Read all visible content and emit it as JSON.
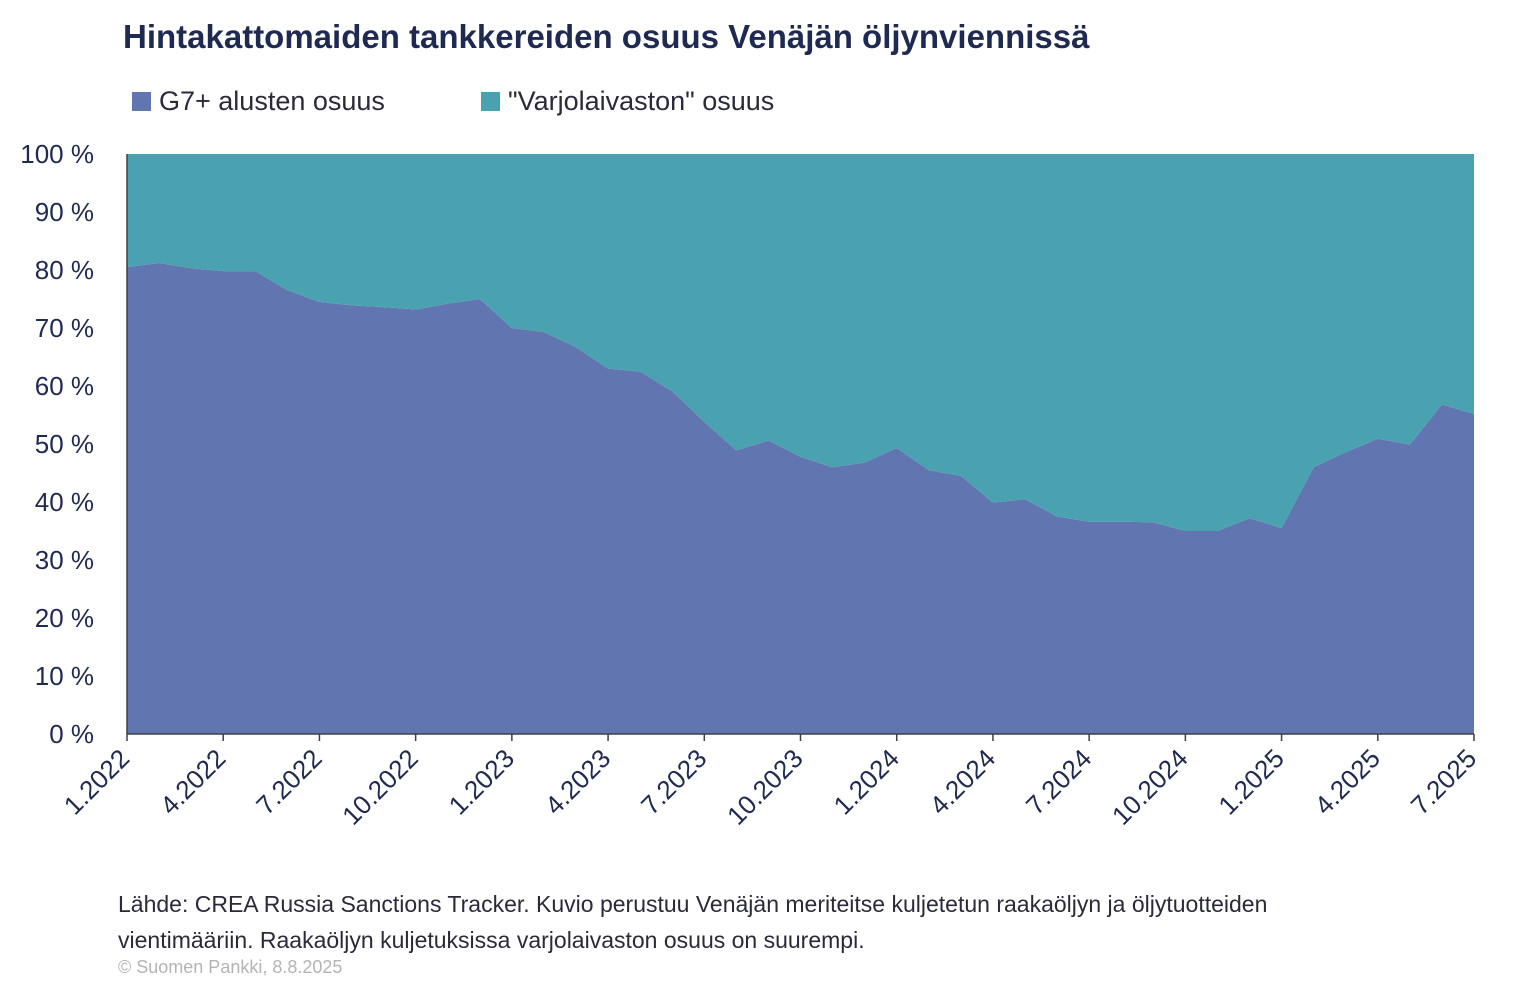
{
  "title": "Hintakattomaiden tankkereiden osuus Venäjän öljynviennissä",
  "legend": [
    {
      "label": "G7+ alusten osuus",
      "color": "#6175b0"
    },
    {
      "label": "\"Varjolaivaston\" osuus",
      "color": "#4aa1b0"
    }
  ],
  "source_lines": [
    "Lähde: CREA Russia Sanctions Tracker. Kuvio perustuu Venäjän meriteitse kuljetetun raakaöljyn ja öljytuotteiden",
    "vientimääriin. Raakaöljyn kuljetuksissa varjolaivaston osuus on suurempi."
  ],
  "copyright": "© Suomen Pankki, 8.8.2025",
  "chart_data": {
    "type": "area",
    "stacked": true,
    "percent": true,
    "title": "Hintakattomaiden tankkereiden osuus Venäjän öljynviennissä",
    "xlabel": "",
    "ylabel": "",
    "ylim": [
      0,
      100
    ],
    "yticks": [
      "0 %",
      "10 %",
      "20 %",
      "30 %",
      "40 %",
      "50 %",
      "60 %",
      "70 %",
      "80 %",
      "90 %",
      "100 %"
    ],
    "xticks": [
      "1.2022",
      "4.2022",
      "7.2022",
      "10.2022",
      "1.2023",
      "4.2023",
      "7.2023",
      "10.2023",
      "1.2024",
      "4.2024",
      "7.2024",
      "10.2024",
      "1.2025",
      "4.2025",
      "7.2025"
    ],
    "x": [
      "1.2022",
      "2.2022",
      "3.2022",
      "4.2022",
      "5.2022",
      "6.2022",
      "7.2022",
      "8.2022",
      "9.2022",
      "10.2022",
      "11.2022",
      "12.2022",
      "1.2023",
      "2.2023",
      "3.2023",
      "4.2023",
      "5.2023",
      "6.2023",
      "7.2023",
      "8.2023",
      "9.2023",
      "10.2023",
      "11.2023",
      "12.2023",
      "1.2024",
      "2.2024",
      "3.2024",
      "4.2024",
      "5.2024",
      "6.2024",
      "7.2024",
      "8.2024",
      "9.2024",
      "10.2024",
      "11.2024",
      "12.2024",
      "1.2025",
      "2.2025",
      "3.2025",
      "4.2025",
      "5.2025",
      "6.2025",
      "7.2025"
    ],
    "series": [
      {
        "name": "G7+ alusten osuus",
        "color": "#6175b0",
        "values": [
          80.5,
          81.2,
          80.3,
          79.8,
          79.8,
          76.5,
          74.5,
          73.9,
          73.6,
          73.2,
          74.2,
          75.0,
          70.0,
          69.3,
          66.7,
          63.0,
          62.5,
          59.1,
          53.8,
          48.9,
          50.6,
          47.8,
          46.0,
          46.8,
          49.3,
          45.5,
          44.5,
          39.9,
          40.5,
          37.5,
          36.6,
          36.6,
          36.5,
          35.0,
          35.0,
          37.2,
          35.5,
          46.0,
          48.6,
          50.9,
          49.9,
          56.8,
          55.2
        ]
      },
      {
        "name": "\"Varjolaivaston\" osuus",
        "color": "#4aa1b0",
        "values": [
          19.5,
          18.8,
          19.7,
          20.2,
          20.2,
          23.5,
          25.5,
          26.1,
          26.4,
          26.8,
          25.8,
          25.0,
          30.0,
          30.7,
          33.3,
          37.0,
          37.5,
          40.9,
          46.2,
          51.1,
          49.4,
          52.2,
          54.0,
          53.2,
          50.7,
          54.5,
          55.5,
          60.1,
          59.5,
          62.5,
          63.4,
          63.4,
          63.5,
          65.0,
          65.0,
          62.8,
          64.5,
          54.0,
          51.4,
          49.1,
          50.1,
          43.2,
          44.8
        ]
      }
    ]
  }
}
